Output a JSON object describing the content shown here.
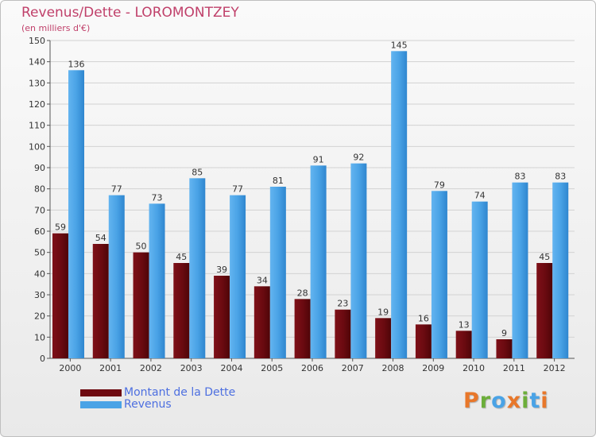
{
  "title": "Revenus/Dette - LOROMONTZEY",
  "subtitle": "(en milliers d'€)",
  "colors": {
    "dette": "#6e0a10",
    "revenus": "#4aa3e6",
    "title": "#c0406a",
    "legend_text": "#4d6fe0"
  },
  "legend": [
    {
      "label": "Montant de la Dette",
      "color": "#6e0a10"
    },
    {
      "label": "Revenus",
      "color": "#4aa3e6"
    }
  ],
  "logo": {
    "text": "Proxiti",
    "letter_colors": [
      "#e8772a",
      "#6cae3a",
      "#4aa3e6",
      "#e8772a",
      "#6cae3a",
      "#4aa3e6",
      "#e8772a"
    ]
  },
  "chart_data": {
    "type": "bar",
    "categories": [
      "2000",
      "2001",
      "2002",
      "2003",
      "2004",
      "2005",
      "2006",
      "2007",
      "2008",
      "2009",
      "2010",
      "2011",
      "2012"
    ],
    "series": [
      {
        "name": "Montant de la Dette",
        "values": [
          59,
          54,
          50,
          45,
          39,
          34,
          28,
          23,
          19,
          16,
          13,
          9,
          45
        ]
      },
      {
        "name": "Revenus",
        "values": [
          136,
          77,
          73,
          85,
          77,
          81,
          91,
          92,
          145,
          79,
          74,
          83,
          83
        ]
      }
    ],
    "yticks": [
      0,
      10,
      20,
      30,
      40,
      50,
      60,
      70,
      80,
      90,
      100,
      110,
      120,
      130,
      140,
      150
    ],
    "ylim": [
      0,
      150
    ],
    "grid": true,
    "legend_position": "bottom-left"
  }
}
